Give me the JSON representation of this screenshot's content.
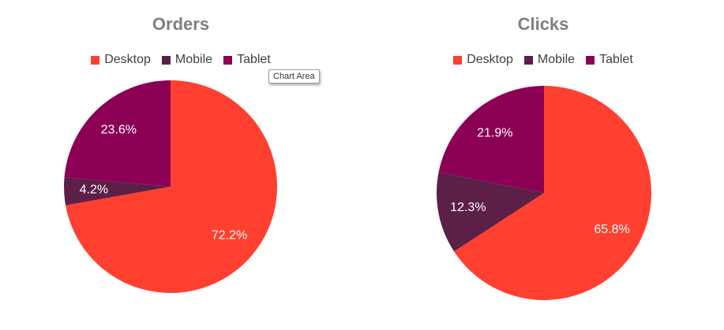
{
  "chart_data": [
    {
      "type": "pie",
      "title": "Orders",
      "categories": [
        "Desktop",
        "Mobile",
        "Tablet"
      ],
      "values": [
        72.2,
        4.2,
        23.6
      ],
      "labels": [
        "72.2%",
        "4.2%",
        "23.6%"
      ],
      "colors": [
        "#ff3f2f",
        "#5c1f47",
        "#8b0055"
      ],
      "legend_position": "top"
    },
    {
      "type": "pie",
      "title": "Clicks",
      "categories": [
        "Desktop",
        "Mobile",
        "Tablet"
      ],
      "values": [
        65.8,
        12.3,
        21.9
      ],
      "labels": [
        "65.8%",
        "12.3%",
        "21.9%"
      ],
      "colors": [
        "#ff3f2f",
        "#5c1f47",
        "#8b0055"
      ],
      "legend_position": "top"
    }
  ],
  "tooltip": {
    "text": "Chart Area"
  }
}
